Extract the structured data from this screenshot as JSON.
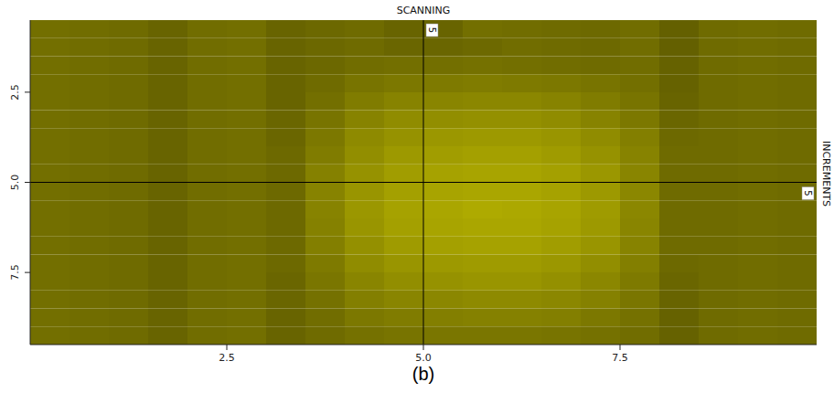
{
  "chart_data": {
    "type": "heatmap",
    "title": "SCANNING",
    "y_label": "INCREMENTS",
    "caption": "(b)",
    "x_edges": [
      0,
      0.5,
      1,
      1.5,
      2,
      2.5,
      3,
      3.5,
      4,
      4.5,
      5,
      5.5,
      6,
      6.5,
      7,
      7.5,
      8,
      8.5,
      9,
      9.5,
      10
    ],
    "y_edges": [
      0.5,
      1,
      1.5,
      2,
      2.5,
      3,
      3.5,
      4,
      4.5,
      5,
      5.5,
      6,
      6.5,
      7,
      7.5,
      8,
      8.5,
      9,
      9.5
    ],
    "values": [
      [
        32,
        30,
        28,
        22,
        30,
        32,
        22,
        25,
        28,
        22,
        22,
        32,
        30,
        28,
        26,
        30,
        18,
        28,
        30,
        28
      ],
      [
        32,
        30,
        28,
        22,
        30,
        32,
        22,
        25,
        28,
        24,
        24,
        26,
        30,
        28,
        26,
        30,
        18,
        28,
        30,
        28
      ],
      [
        32,
        30,
        28,
        22,
        30,
        32,
        22,
        25,
        30,
        32,
        32,
        34,
        32,
        30,
        28,
        30,
        20,
        28,
        30,
        28
      ],
      [
        32,
        30,
        28,
        22,
        30,
        32,
        22,
        28,
        36,
        40,
        42,
        44,
        42,
        40,
        36,
        32,
        20,
        28,
        30,
        28
      ],
      [
        32,
        30,
        28,
        22,
        30,
        32,
        22,
        32,
        44,
        50,
        52,
        54,
        54,
        50,
        44,
        36,
        22,
        28,
        30,
        28
      ],
      [
        32,
        30,
        28,
        22,
        30,
        32,
        24,
        36,
        50,
        58,
        60,
        62,
        62,
        58,
        50,
        40,
        24,
        28,
        30,
        28
      ],
      [
        32,
        30,
        28,
        22,
        30,
        32,
        24,
        40,
        56,
        64,
        68,
        70,
        70,
        66,
        58,
        46,
        26,
        28,
        30,
        28
      ],
      [
        32,
        30,
        28,
        22,
        30,
        32,
        26,
        44,
        60,
        70,
        74,
        76,
        76,
        72,
        64,
        50,
        28,
        28,
        30,
        28
      ],
      [
        32,
        30,
        28,
        22,
        30,
        32,
        26,
        48,
        64,
        74,
        78,
        80,
        80,
        76,
        68,
        52,
        28,
        28,
        30,
        28
      ],
      [
        32,
        30,
        28,
        22,
        30,
        32,
        26,
        50,
        66,
        76,
        80,
        82,
        82,
        78,
        70,
        54,
        28,
        28,
        30,
        28
      ],
      [
        32,
        30,
        28,
        22,
        30,
        32,
        26,
        50,
        68,
        78,
        82,
        85,
        84,
        80,
        72,
        54,
        28,
        28,
        30,
        28
      ],
      [
        32,
        30,
        28,
        22,
        30,
        32,
        26,
        48,
        66,
        76,
        80,
        82,
        82,
        78,
        70,
        52,
        28,
        28,
        30,
        28
      ],
      [
        32,
        30,
        28,
        22,
        30,
        32,
        26,
        46,
        62,
        72,
        76,
        78,
        78,
        74,
        66,
        50,
        28,
        28,
        30,
        28
      ],
      [
        32,
        30,
        28,
        22,
        30,
        32,
        26,
        42,
        58,
        66,
        70,
        72,
        72,
        68,
        60,
        46,
        26,
        28,
        30,
        28
      ],
      [
        32,
        30,
        28,
        22,
        30,
        32,
        24,
        38,
        52,
        60,
        64,
        66,
        66,
        62,
        54,
        42,
        24,
        28,
        30,
        28
      ],
      [
        32,
        30,
        28,
        22,
        30,
        32,
        24,
        34,
        46,
        52,
        54,
        56,
        56,
        54,
        48,
        38,
        22,
        28,
        30,
        28
      ],
      [
        32,
        30,
        28,
        22,
        30,
        32,
        22,
        30,
        40,
        44,
        46,
        48,
        48,
        46,
        40,
        34,
        20,
        28,
        30,
        28
      ],
      [
        32,
        30,
        28,
        22,
        30,
        32,
        22,
        28,
        34,
        36,
        38,
        38,
        38,
        36,
        34,
        30,
        20,
        28,
        30,
        28
      ]
    ],
    "zlim": [
      0,
      100
    ],
    "xlim": [
      0,
      10
    ],
    "ylim": [
      9.5,
      0.5
    ],
    "xticks": [
      2.5,
      {
        "value": 5,
        "label": "5.0"
      },
      7.5
    ],
    "yticks": [
      2.5,
      {
        "value": 5,
        "label": "5.0"
      },
      7.5
    ],
    "crosshair": {
      "x": 5,
      "y": 5
    }
  }
}
